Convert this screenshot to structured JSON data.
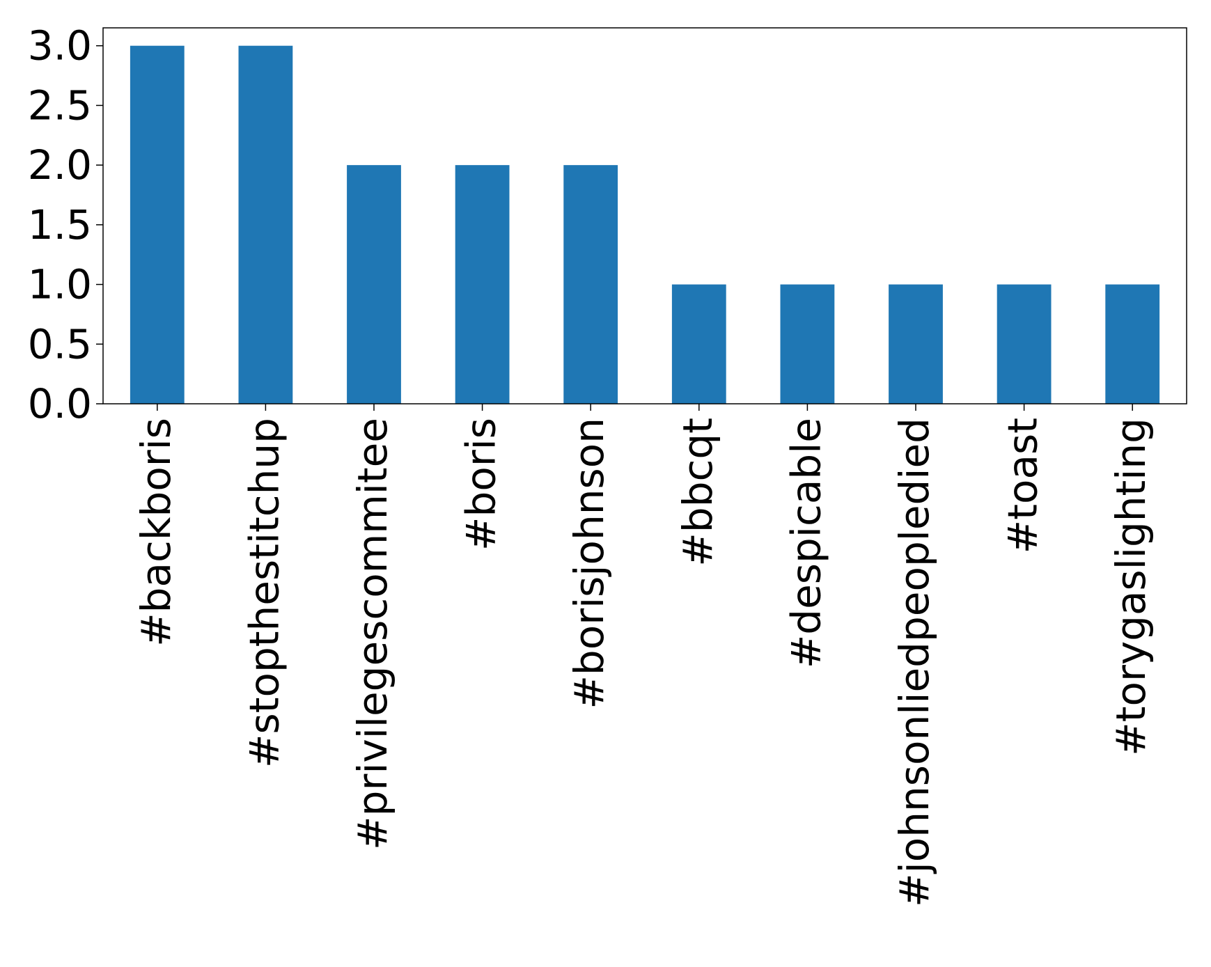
{
  "chart_data": {
    "type": "bar",
    "title": "",
    "xlabel": "",
    "ylabel": "",
    "categories": [
      "#backboris",
      "#stopthestitchup",
      "#privilegescommitee",
      "#boris",
      "#borisjohnson",
      "#bbcqt",
      "#despicable",
      "#johnsonliedpeopledied",
      "#toast",
      "#torygaslighting"
    ],
    "values": [
      3,
      3,
      2,
      2,
      2,
      1,
      1,
      1,
      1,
      1
    ],
    "ylim": [
      0,
      3.15
    ],
    "yticks": [
      "0.0",
      "0.5",
      "1.0",
      "1.5",
      "2.0",
      "2.5",
      "3.0"
    ],
    "grid": false,
    "legend": "none",
    "bar_color": "#1f77b4"
  }
}
